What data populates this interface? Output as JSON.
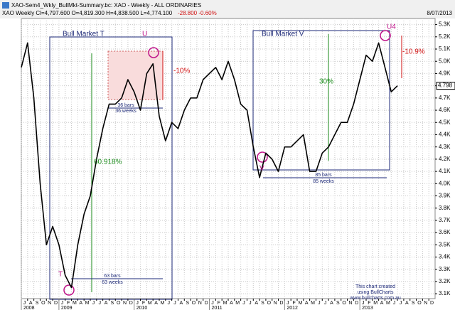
{
  "chart_data": {
    "type": "line",
    "title": "XAO-Sem4_Wkly_BullMkt-Summary.bc: XAO - Weekly - ALL ORDINARIES",
    "subtitle": "XAO  Weekly  Cl=4,797.600  O=4,819.300  H=4,838.500  L=4,774.100",
    "change": "-28.800  -0.60%",
    "date": "8/07/2013",
    "last_value_label": "4.798",
    "color": "#000000",
    "grid": true,
    "series": [
      {
        "name": "XAO",
        "color": "#000000",
        "x": [
          "2008-07",
          "2008-08",
          "2008-09",
          "2008-10",
          "2008-11",
          "2008-12",
          "2009-01",
          "2009-02",
          "2009-03",
          "2009-04",
          "2009-05",
          "2009-06",
          "2009-07",
          "2009-08",
          "2009-09",
          "2009-10",
          "2009-11",
          "2009-12",
          "2010-01",
          "2010-02",
          "2010-03",
          "2010-04",
          "2010-05",
          "2010-06",
          "2010-07",
          "2010-08",
          "2010-09",
          "2010-10",
          "2010-11",
          "2010-12",
          "2011-01",
          "2011-02",
          "2011-03",
          "2011-04",
          "2011-05",
          "2011-06",
          "2011-07",
          "2011-08",
          "2011-09",
          "2011-10",
          "2011-11",
          "2011-12",
          "2012-01",
          "2012-02",
          "2012-03",
          "2012-04",
          "2012-05",
          "2012-06",
          "2012-07",
          "2012-08",
          "2012-09",
          "2012-10",
          "2012-11",
          "2012-12",
          "2013-01",
          "2013-02",
          "2013-03",
          "2013-04",
          "2013-05",
          "2013-06",
          "2013-07"
        ],
        "values": [
          4950,
          5150,
          4700,
          4000,
          3500,
          3650,
          3500,
          3250,
          3150,
          3500,
          3750,
          3900,
          4200,
          4450,
          4650,
          4650,
          4700,
          4850,
          4750,
          4600,
          4900,
          4980,
          4550,
          4350,
          4500,
          4450,
          4600,
          4700,
          4700,
          4850,
          4900,
          4950,
          4850,
          5000,
          4850,
          4650,
          4600,
          4300,
          4050,
          4250,
          4200,
          4100,
          4300,
          4300,
          4350,
          4400,
          4100,
          4100,
          4250,
          4300,
          4400,
          4500,
          4500,
          4650,
          4850,
          5050,
          5000,
          5150,
          4950,
          4750,
          4800
        ]
      }
    ],
    "xlim": [
      "2008-07",
      "2014-01"
    ],
    "xticks": [
      {
        "value": "2008-07",
        "label": "J"
      },
      {
        "value": "2008-08",
        "label": "A"
      },
      {
        "value": "2008-09",
        "label": "S"
      },
      {
        "value": "2008-10",
        "label": "O"
      },
      {
        "value": "2008-11",
        "label": "N"
      },
      {
        "value": "2008-12",
        "label": "D"
      },
      {
        "value": "2009-01",
        "label": "J"
      },
      {
        "value": "2009-02",
        "label": "F"
      },
      {
        "value": "2009-03",
        "label": "M"
      },
      {
        "value": "2009-04",
        "label": "A"
      },
      {
        "value": "2009-05",
        "label": "M"
      },
      {
        "value": "2009-06",
        "label": "J"
      },
      {
        "value": "2009-07",
        "label": "J"
      },
      {
        "value": "2009-08",
        "label": "A"
      },
      {
        "value": "2009-09",
        "label": "S"
      },
      {
        "value": "2009-10",
        "label": "O"
      },
      {
        "value": "2009-11",
        "label": "N"
      },
      {
        "value": "2009-12",
        "label": "D"
      },
      {
        "value": "2010-01",
        "label": "J"
      },
      {
        "value": "2010-02",
        "label": "F"
      },
      {
        "value": "2010-03",
        "label": "M"
      },
      {
        "value": "2010-04",
        "label": "A"
      },
      {
        "value": "2010-05",
        "label": "M"
      },
      {
        "value": "2010-06",
        "label": "J"
      },
      {
        "value": "2010-07",
        "label": "J"
      },
      {
        "value": "2010-08",
        "label": "A"
      },
      {
        "value": "2010-09",
        "label": "S"
      },
      {
        "value": "2010-10",
        "label": "O"
      },
      {
        "value": "2010-11",
        "label": "N"
      },
      {
        "value": "2010-12",
        "label": "D"
      },
      {
        "value": "2011-01",
        "label": "J"
      },
      {
        "value": "2011-02",
        "label": "F"
      },
      {
        "value": "2011-03",
        "label": "M"
      },
      {
        "value": "2011-04",
        "label": "A"
      },
      {
        "value": "2011-05",
        "label": "M"
      },
      {
        "value": "2011-06",
        "label": "J"
      },
      {
        "value": "2011-07",
        "label": "J"
      },
      {
        "value": "2011-08",
        "label": "A"
      },
      {
        "value": "2011-09",
        "label": "S"
      },
      {
        "value": "2011-10",
        "label": "O"
      },
      {
        "value": "2011-11",
        "label": "N"
      },
      {
        "value": "2011-12",
        "label": "D"
      },
      {
        "value": "2012-01",
        "label": "J"
      },
      {
        "value": "2012-02",
        "label": "F"
      },
      {
        "value": "2012-03",
        "label": "M"
      },
      {
        "value": "2012-04",
        "label": "A"
      },
      {
        "value": "2012-05",
        "label": "M"
      },
      {
        "value": "2012-06",
        "label": "J"
      },
      {
        "value": "2012-07",
        "label": "J"
      },
      {
        "value": "2012-08",
        "label": "A"
      },
      {
        "value": "2012-09",
        "label": "S"
      },
      {
        "value": "2012-10",
        "label": "O"
      },
      {
        "value": "2012-11",
        "label": "N"
      },
      {
        "value": "2012-12",
        "label": "D"
      },
      {
        "value": "2013-01",
        "label": "J"
      },
      {
        "value": "2013-02",
        "label": "F"
      },
      {
        "value": "2013-03",
        "label": "M"
      },
      {
        "value": "2013-04",
        "label": "A"
      },
      {
        "value": "2013-05",
        "label": "M"
      },
      {
        "value": "2013-06",
        "label": "J"
      },
      {
        "value": "2013-07",
        "label": "J"
      },
      {
        "value": "2013-08",
        "label": "A"
      },
      {
        "value": "2013-09",
        "label": "S"
      },
      {
        "value": "2013-10",
        "label": "O"
      },
      {
        "value": "2013-11",
        "label": "N"
      },
      {
        "value": "2013-12",
        "label": "D"
      }
    ],
    "year_ticks": [
      {
        "value": "2008-07",
        "label": "2008"
      },
      {
        "value": "2009-01",
        "label": "2009"
      },
      {
        "value": "2010-01",
        "label": "2010"
      },
      {
        "value": "2011-01",
        "label": "2011"
      },
      {
        "value": "2012-01",
        "label": "2012"
      },
      {
        "value": "2013-01",
        "label": "2013"
      }
    ],
    "ylim": [
      3060,
      5350
    ],
    "yticks": [
      {
        "value": 3100,
        "label": "3.1K"
      },
      {
        "value": 3200,
        "label": "3.2K"
      },
      {
        "value": 3300,
        "label": "3.3K"
      },
      {
        "value": 3400,
        "label": "3.4K"
      },
      {
        "value": 3500,
        "label": "3.5K"
      },
      {
        "value": 3600,
        "label": "3.6K"
      },
      {
        "value": 3700,
        "label": "3.7K"
      },
      {
        "value": 3800,
        "label": "3.8K"
      },
      {
        "value": 3900,
        "label": "3.9K"
      },
      {
        "value": 4000,
        "label": "4.0K"
      },
      {
        "value": 4100,
        "label": "4.1K"
      },
      {
        "value": 4200,
        "label": "4.2K"
      },
      {
        "value": 4300,
        "label": "4.3K"
      },
      {
        "value": 4400,
        "label": "4.4K"
      },
      {
        "value": 4500,
        "label": "4.5K"
      },
      {
        "value": 4600,
        "label": "4.6K"
      },
      {
        "value": 4700,
        "label": "4.7K"
      },
      {
        "value": 4800,
        "label": "4.8K"
      },
      {
        "value": 4900,
        "label": "4.9K"
      },
      {
        "value": 5000,
        "label": "5.0K"
      },
      {
        "value": 5100,
        "label": "5.1K"
      },
      {
        "value": 5200,
        "label": "5.2K"
      },
      {
        "value": 5300,
        "label": "5.3K"
      }
    ],
    "annotations": [
      "Bull Market T",
      "U",
      "-10%",
      "36 bars",
      "36 weeks",
      "60.918%",
      "T",
      "63 bars",
      "63 weeks",
      "Bull Market V",
      "U4",
      "-10.9%",
      "30%",
      "V",
      "85 bars",
      "85 weeks",
      "This chart created",
      "using BullCharts",
      "www.bullcharts.com.au"
    ]
  }
}
